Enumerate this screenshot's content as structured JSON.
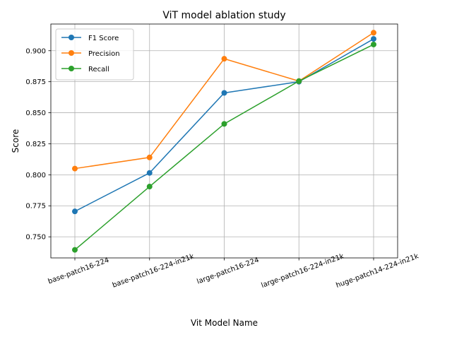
{
  "chart_data": {
    "type": "line",
    "title": "ViT model ablation study",
    "xlabel": "Vit Model Name",
    "ylabel": "Score",
    "categories": [
      "base-patch16-224",
      "base-patch16-224-in21k",
      "large-patch16-224",
      "large-patch16-224-in21k",
      "huge-patch14-224-in21k"
    ],
    "series": [
      {
        "name": "F1 Score",
        "color": "#1f77b4",
        "values": [
          0.7705,
          0.8015,
          0.866,
          0.875,
          0.9095
        ]
      },
      {
        "name": "Precision",
        "color": "#ff7f0e",
        "values": [
          0.805,
          0.814,
          0.8935,
          0.8755,
          0.9145
        ]
      },
      {
        "name": "Recall",
        "color": "#2ca02c",
        "values": [
          0.7395,
          0.7905,
          0.841,
          0.8755,
          0.905
        ]
      }
    ],
    "ylim": [
      0.733,
      0.9215
    ],
    "yticks": [
      "0.750",
      "0.775",
      "0.800",
      "0.825",
      "0.850",
      "0.875",
      "0.900"
    ],
    "grid": true,
    "legend_position": "top-left"
  }
}
